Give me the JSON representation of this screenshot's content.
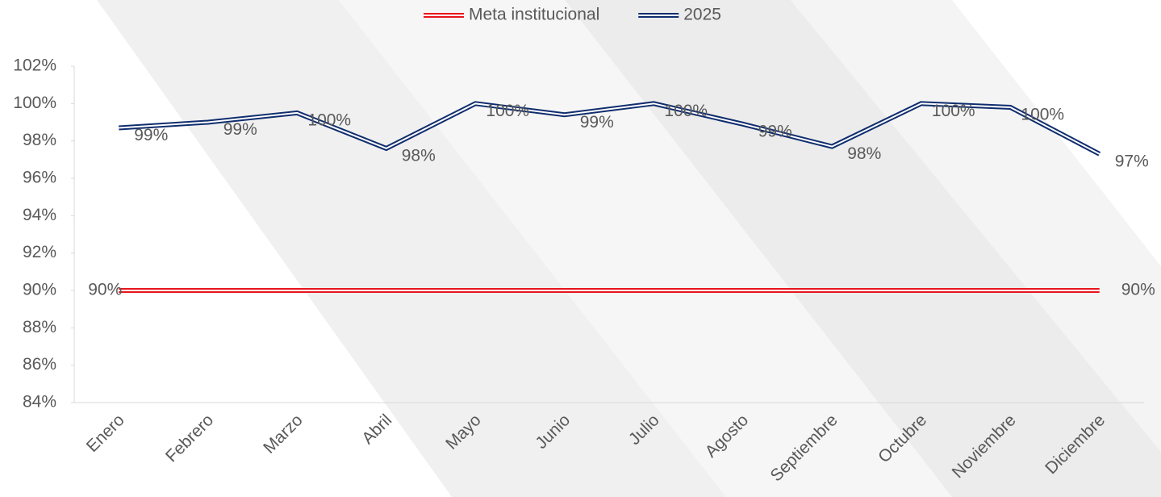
{
  "chart_data": {
    "type": "line",
    "categories": [
      "Enero",
      "Febrero",
      "Marzo",
      "Abril",
      "Mayo",
      "Junio",
      "Julio",
      "Agosto",
      "Septiembre",
      "Octubre",
      "Noviembre",
      "Diciembre"
    ],
    "series": [
      {
        "name": "Meta institucional",
        "color": "#e8141c",
        "values": [
          90,
          90,
          90,
          90,
          90,
          90,
          90,
          90,
          90,
          90,
          90,
          90
        ],
        "value_labels": [
          "90%",
          null,
          null,
          null,
          null,
          null,
          null,
          null,
          null,
          null,
          null,
          "90%"
        ]
      },
      {
        "name": "2025",
        "color": "#0f2d6e",
        "values": [
          98.7,
          99.0,
          99.5,
          97.6,
          100.0,
          99.4,
          100.0,
          98.9,
          97.7,
          100.0,
          99.8,
          97.3
        ],
        "value_labels": [
          "99%",
          "99%",
          "100%",
          "98%",
          "100%",
          "99%",
          "100%",
          "99%",
          "98%",
          "100%",
          "100%",
          "97%"
        ]
      }
    ],
    "ylim": [
      84,
      102
    ],
    "yticks": [
      {
        "value": 84,
        "label": "84%"
      },
      {
        "value": 86,
        "label": "86%"
      },
      {
        "value": 88,
        "label": "88%"
      },
      {
        "value": 90,
        "label": "90%"
      },
      {
        "value": 92,
        "label": "92%"
      },
      {
        "value": 94,
        "label": "94%"
      },
      {
        "value": 96,
        "label": "96%"
      },
      {
        "value": 98,
        "label": "98%"
      },
      {
        "value": 100,
        "label": "100%"
      },
      {
        "value": 102,
        "label": "102%"
      }
    ],
    "legend": "top",
    "grid": false
  }
}
